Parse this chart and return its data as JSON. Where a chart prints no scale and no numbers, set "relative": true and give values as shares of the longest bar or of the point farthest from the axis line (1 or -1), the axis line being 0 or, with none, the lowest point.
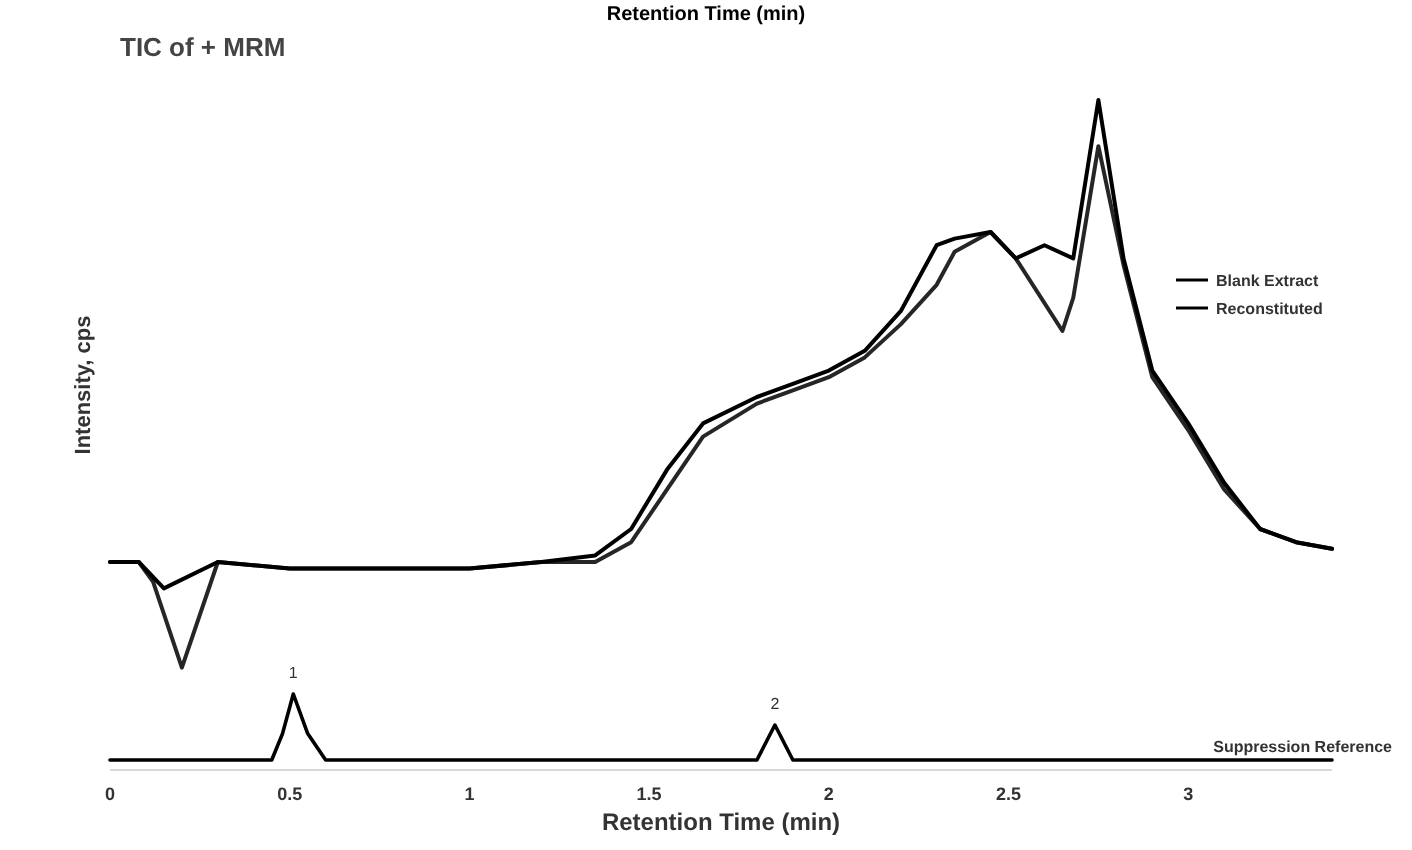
{
  "chart_data": {
    "type": "line",
    "title": "Retention Time (min)",
    "subtitle": "TIC of + MRM",
    "xlabel": "Retention Time (min)",
    "ylabel": "Intensity, cps",
    "relative": true,
    "xlim": [
      0,
      3.4
    ],
    "xticks": [
      0,
      0.5,
      1,
      1.5,
      2,
      2.5,
      3
    ],
    "legend": "right",
    "grid": false,
    "line_style": "solid",
    "annotations": [
      {
        "text": "1",
        "x": 0.51,
        "y": 0.1
      },
      {
        "text": "2",
        "x": 1.85,
        "y": 0.053
      }
    ],
    "series": [
      {
        "name": "Blank Extract",
        "color": "#000000",
        "x": [
          0,
          0.08,
          0.15,
          0.3,
          0.5,
          1.0,
          1.2,
          1.35,
          1.45,
          1.55,
          1.65,
          1.8,
          1.9,
          2.0,
          2.1,
          2.2,
          2.3,
          2.35,
          2.45,
          2.52,
          2.6,
          2.68,
          2.75,
          2.82,
          2.9,
          3.0,
          3.1,
          3.2,
          3.3,
          3.4
        ],
        "values": [
          0.3,
          0.3,
          0.26,
          0.3,
          0.29,
          0.29,
          0.3,
          0.31,
          0.35,
          0.44,
          0.51,
          0.55,
          0.57,
          0.59,
          0.62,
          0.68,
          0.78,
          0.79,
          0.8,
          0.76,
          0.78,
          0.76,
          1.0,
          0.76,
          0.59,
          0.51,
          0.42,
          0.35,
          0.33,
          0.32
        ]
      },
      {
        "name": "Reconstituted",
        "color": "#000000",
        "x": [
          0,
          0.08,
          0.12,
          0.2,
          0.3,
          0.5,
          1.0,
          1.2,
          1.35,
          1.45,
          1.55,
          1.65,
          1.8,
          1.9,
          2.0,
          2.1,
          2.2,
          2.3,
          2.35,
          2.45,
          2.52,
          2.65,
          2.68,
          2.75,
          2.82,
          2.9,
          3.0,
          3.1,
          3.2,
          3.3,
          3.4
        ],
        "values": [
          0.3,
          0.3,
          0.27,
          0.14,
          0.3,
          0.29,
          0.29,
          0.3,
          0.3,
          0.33,
          0.41,
          0.49,
          0.54,
          0.56,
          0.58,
          0.61,
          0.66,
          0.72,
          0.77,
          0.8,
          0.76,
          0.65,
          0.7,
          0.93,
          0.75,
          0.58,
          0.5,
          0.41,
          0.35,
          0.33,
          0.32
        ]
      },
      {
        "name": "Suppression Reference",
        "color": "#000000",
        "x": [
          0,
          0.45,
          0.48,
          0.51,
          0.55,
          0.6,
          1.8,
          1.85,
          1.9,
          3.4
        ],
        "values": [
          0,
          0,
          0.04,
          0.1,
          0.04,
          0,
          0,
          0.053,
          0,
          0
        ]
      }
    ]
  }
}
